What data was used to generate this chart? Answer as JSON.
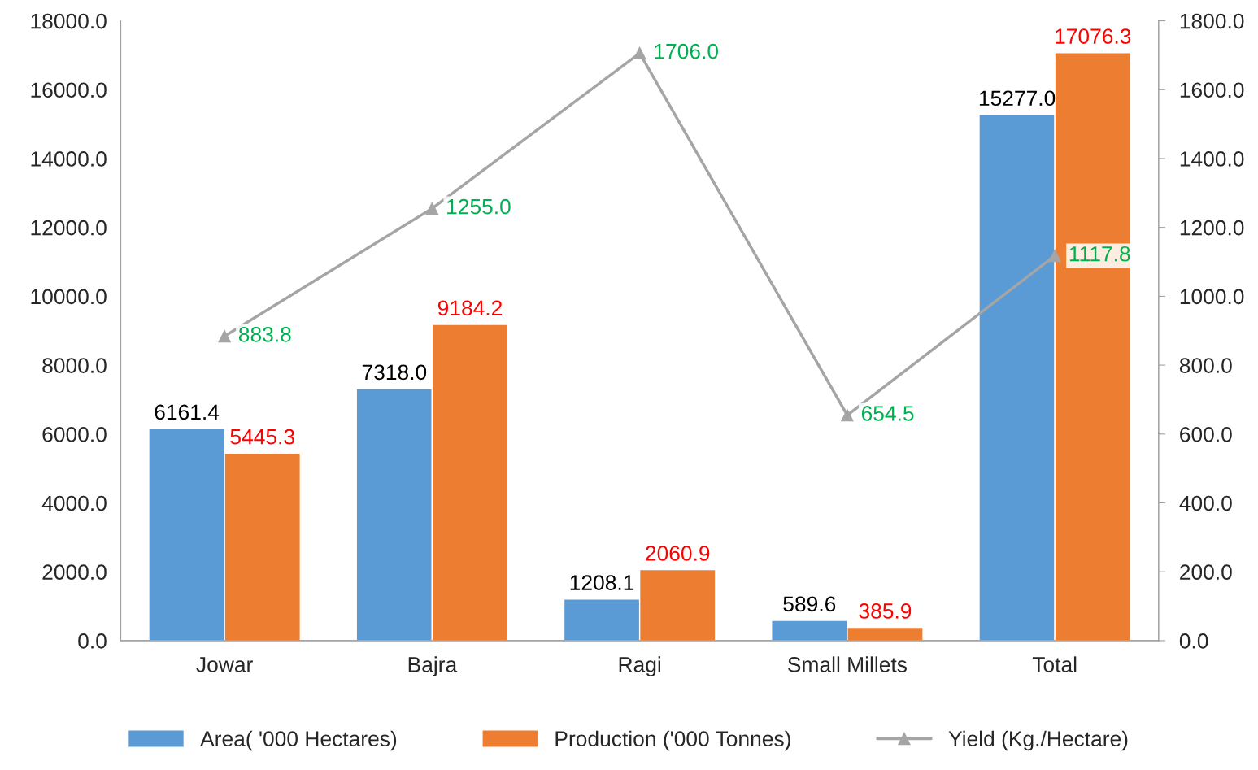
{
  "chart_data": {
    "type": "bar",
    "categories": [
      "Jowar",
      "Bajra",
      "Ragi",
      "Small Millets",
      "Total"
    ],
    "series": [
      {
        "name": "Area( '000 Hectares)",
        "color": "#5b9bd5",
        "values": [
          6161.4,
          7318,
          1208.1,
          589.6,
          15277
        ],
        "value_labels": [
          "6161.4",
          "7318.0",
          "1208.1",
          "589.6",
          "15277.0"
        ]
      },
      {
        "name": "Production ('000 Tonnes)",
        "color": "#ed7d31",
        "values": [
          5445.3,
          9184.2,
          2060.9,
          385.9,
          17076.3
        ],
        "value_labels": [
          "5445.3",
          "9184.2",
          "2060.9",
          "385.9",
          "17076.3"
        ]
      },
      {
        "name": "Yield (Kg./Hectare)",
        "color": "#a5a5a5",
        "type": "line",
        "axis": "y2",
        "marker": "triangle",
        "values": [
          883.8,
          1255,
          1706,
          654.5,
          1117.8
        ],
        "value_labels": [
          "883.8",
          "1255.0",
          "1706.0",
          "654.5",
          "1117.8"
        ]
      }
    ],
    "ylim": [
      0,
      18000
    ],
    "yticks": [
      {
        "value": 0,
        "label": "0.0"
      },
      {
        "value": 2000,
        "label": "2000.0"
      },
      {
        "value": 4000,
        "label": "4000.0"
      },
      {
        "value": 6000,
        "label": "6000.0"
      },
      {
        "value": 8000,
        "label": "8000.0"
      },
      {
        "value": 10000,
        "label": "10000.0"
      },
      {
        "value": 12000,
        "label": "12000.0"
      },
      {
        "value": 14000,
        "label": "14000.0"
      },
      {
        "value": 16000,
        "label": "16000.0"
      },
      {
        "value": 18000,
        "label": "18000.0"
      }
    ],
    "y2lim": [
      0,
      1800
    ],
    "y2ticks": [
      {
        "value": 0,
        "label": "0.0"
      },
      {
        "value": 200,
        "label": "200.0"
      },
      {
        "value": 400,
        "label": "400.0"
      },
      {
        "value": 600,
        "label": "600.0"
      },
      {
        "value": 800,
        "label": "800.0"
      },
      {
        "value": 1000,
        "label": "1000.0"
      },
      {
        "value": 1200,
        "label": "1200.0"
      },
      {
        "value": 1400,
        "label": "1400.0"
      },
      {
        "value": 1600,
        "label": "1600.0"
      },
      {
        "value": 1800,
        "label": "1800.0"
      }
    ],
    "grid": false,
    "legend": "bottom"
  }
}
